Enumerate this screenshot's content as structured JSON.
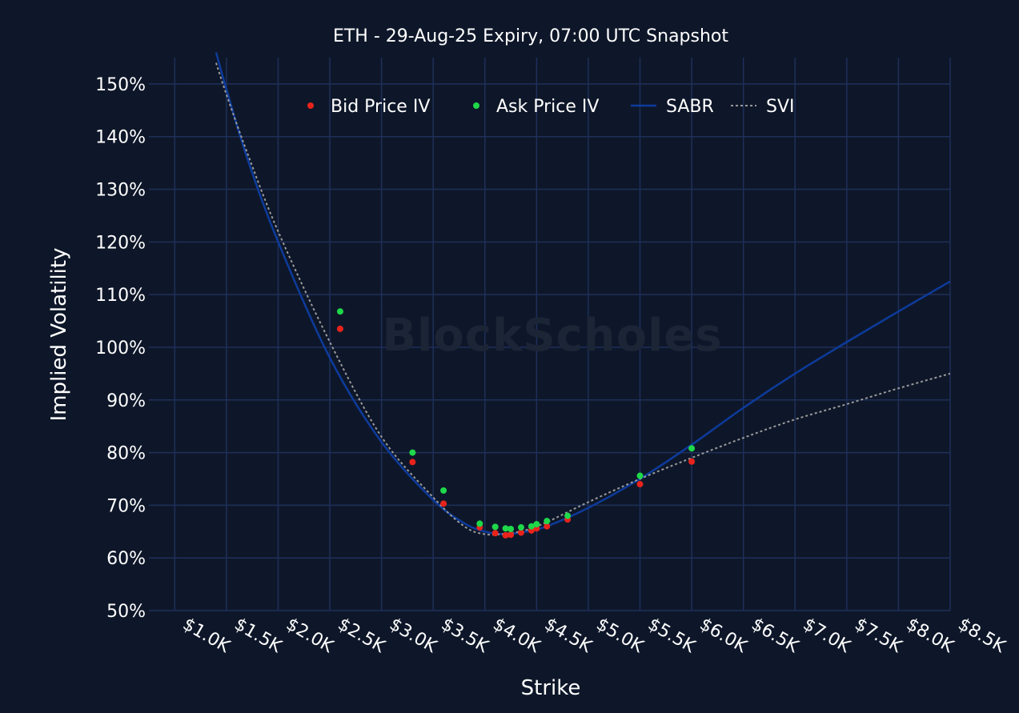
{
  "colors": {
    "background": "#0e1729",
    "grid": "#1e2f5a",
    "bid": "#e8231c",
    "ask": "#1fd84a",
    "sabr": "#0d3b9c",
    "svi": "#9a9a9a",
    "text": "#ffffff",
    "watermark": "#1b2536"
  },
  "watermark": "BlockScholes",
  "chart_data": {
    "type": "scatter",
    "title": "ETH - 29-Aug-25 Expiry, 07:00 UTC Snapshot",
    "xlabel": "Strike",
    "ylabel": "Implied Volatility",
    "xlim": [
      750,
      8500
    ],
    "ylim": [
      50,
      155
    ],
    "grid": true,
    "legend_position": "top-center",
    "x_ticks": [
      1000,
      1500,
      2000,
      2500,
      3000,
      3500,
      4000,
      4500,
      5000,
      5500,
      6000,
      6500,
      7000,
      7500,
      8000,
      8500
    ],
    "x_tick_labels": [
      "$1.0K",
      "$1.5K",
      "$2.0K",
      "$2.5K",
      "$3.0K",
      "$3.5K",
      "$4.0K",
      "$4.5K",
      "$5.0K",
      "$5.5K",
      "$6.0K",
      "$6.5K",
      "$7.0K",
      "$7.5K",
      "$8.0K",
      "$8.5K"
    ],
    "y_ticks": [
      50,
      60,
      70,
      80,
      90,
      100,
      110,
      120,
      130,
      140,
      150
    ],
    "y_tick_labels": [
      "50%",
      "60%",
      "70%",
      "80%",
      "90%",
      "100%",
      "110%",
      "120%",
      "130%",
      "140%",
      "150%"
    ],
    "series": [
      {
        "name": "Bid Price IV",
        "kind": "markers",
        "color": "#e8231c",
        "x": [
          2600,
          3300,
          3600,
          3950,
          4100,
          4200,
          4250,
          4350,
          4450,
          4500,
          4600,
          4800,
          5500,
          6000
        ],
        "y": [
          103.5,
          78.2,
          70.3,
          65.8,
          64.7,
          64.3,
          64.4,
          64.8,
          65.2,
          65.6,
          66.0,
          67.3,
          74.0,
          78.3
        ]
      },
      {
        "name": "Ask Price IV",
        "kind": "markers",
        "color": "#1fd84a",
        "x": [
          2600,
          3300,
          3600,
          3950,
          4100,
          4200,
          4250,
          4350,
          4450,
          4500,
          4600,
          4800,
          5500,
          6000
        ],
        "y": [
          106.8,
          80.0,
          72.8,
          66.5,
          65.9,
          65.6,
          65.5,
          65.8,
          66.0,
          66.4,
          67.0,
          68.0,
          75.6,
          80.8
        ]
      },
      {
        "name": "SABR",
        "kind": "line",
        "color": "#0d3b9c",
        "x": [
          1400,
          1500,
          1700,
          2000,
          2500,
          3000,
          3500,
          3800,
          4000,
          4200,
          4400,
          4600,
          5000,
          5500,
          6000,
          6500,
          7000,
          7500,
          8000,
          8500
        ],
        "y": [
          156,
          149,
          136,
          120,
          98,
          82,
          71,
          66.6,
          65.0,
          64.5,
          65.0,
          66.0,
          69.5,
          75.0,
          81.5,
          88.5,
          95.0,
          101.0,
          106.8,
          112.5
        ]
      },
      {
        "name": "SVI",
        "kind": "line",
        "color": "#9a9a9a",
        "x": [
          1400,
          1500,
          1700,
          2000,
          2500,
          3000,
          3500,
          3800,
          4000,
          4200,
          4400,
          4600,
          5000,
          5500,
          6000,
          6500,
          7000,
          7500,
          8000,
          8500
        ],
        "y": [
          154,
          148,
          137,
          122,
          101,
          83,
          71.5,
          66.0,
          64.5,
          64.6,
          65.3,
          66.8,
          70.6,
          75.0,
          79.0,
          82.8,
          86.3,
          89.2,
          92.2,
          95.0
        ]
      }
    ]
  }
}
